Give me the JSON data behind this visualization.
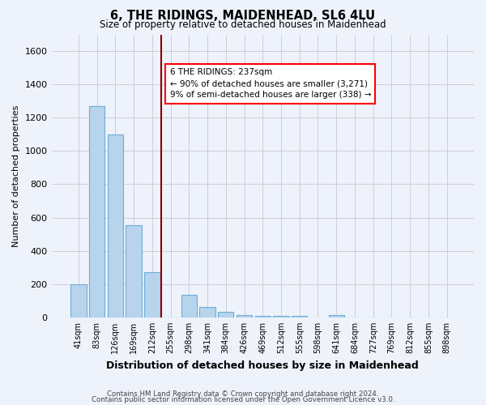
{
  "title": "6, THE RIDINGS, MAIDENHEAD, SL6 4LU",
  "subtitle": "Size of property relative to detached houses in Maidenhead",
  "xlabel": "Distribution of detached houses by size in Maidenhead",
  "ylabel": "Number of detached properties",
  "footnote1": "Contains HM Land Registry data © Crown copyright and database right 2024.",
  "footnote2": "Contains public sector information licensed under the Open Government Licence v3.0.",
  "categories": [
    "41sqm",
    "83sqm",
    "126sqm",
    "169sqm",
    "212sqm",
    "255sqm",
    "298sqm",
    "341sqm",
    "384sqm",
    "426sqm",
    "469sqm",
    "512sqm",
    "555sqm",
    "598sqm",
    "641sqm",
    "684sqm",
    "727sqm",
    "769sqm",
    "812sqm",
    "855sqm",
    "898sqm"
  ],
  "values": [
    197,
    1271,
    1101,
    553,
    274,
    0,
    134,
    62,
    32,
    15,
    10,
    8,
    7,
    0,
    14,
    0,
    0,
    0,
    0,
    0,
    0
  ],
  "bar_color": "#b8d4ec",
  "bar_edgecolor": "#6aaed6",
  "bg_color": "#eef2fb",
  "grid_color": "#c8c8d0",
  "vline_x": 4.5,
  "vline_color": "#8b0000",
  "annotation_line1": "6 THE RIDINGS: 237sqm",
  "annotation_line2": "← 90% of detached houses are smaller (3,271)",
  "annotation_line3": "9% of semi-detached houses are larger (338) →",
  "ylim": [
    0,
    1700
  ],
  "yticks": [
    0,
    200,
    400,
    600,
    800,
    1000,
    1200,
    1400,
    1600
  ]
}
